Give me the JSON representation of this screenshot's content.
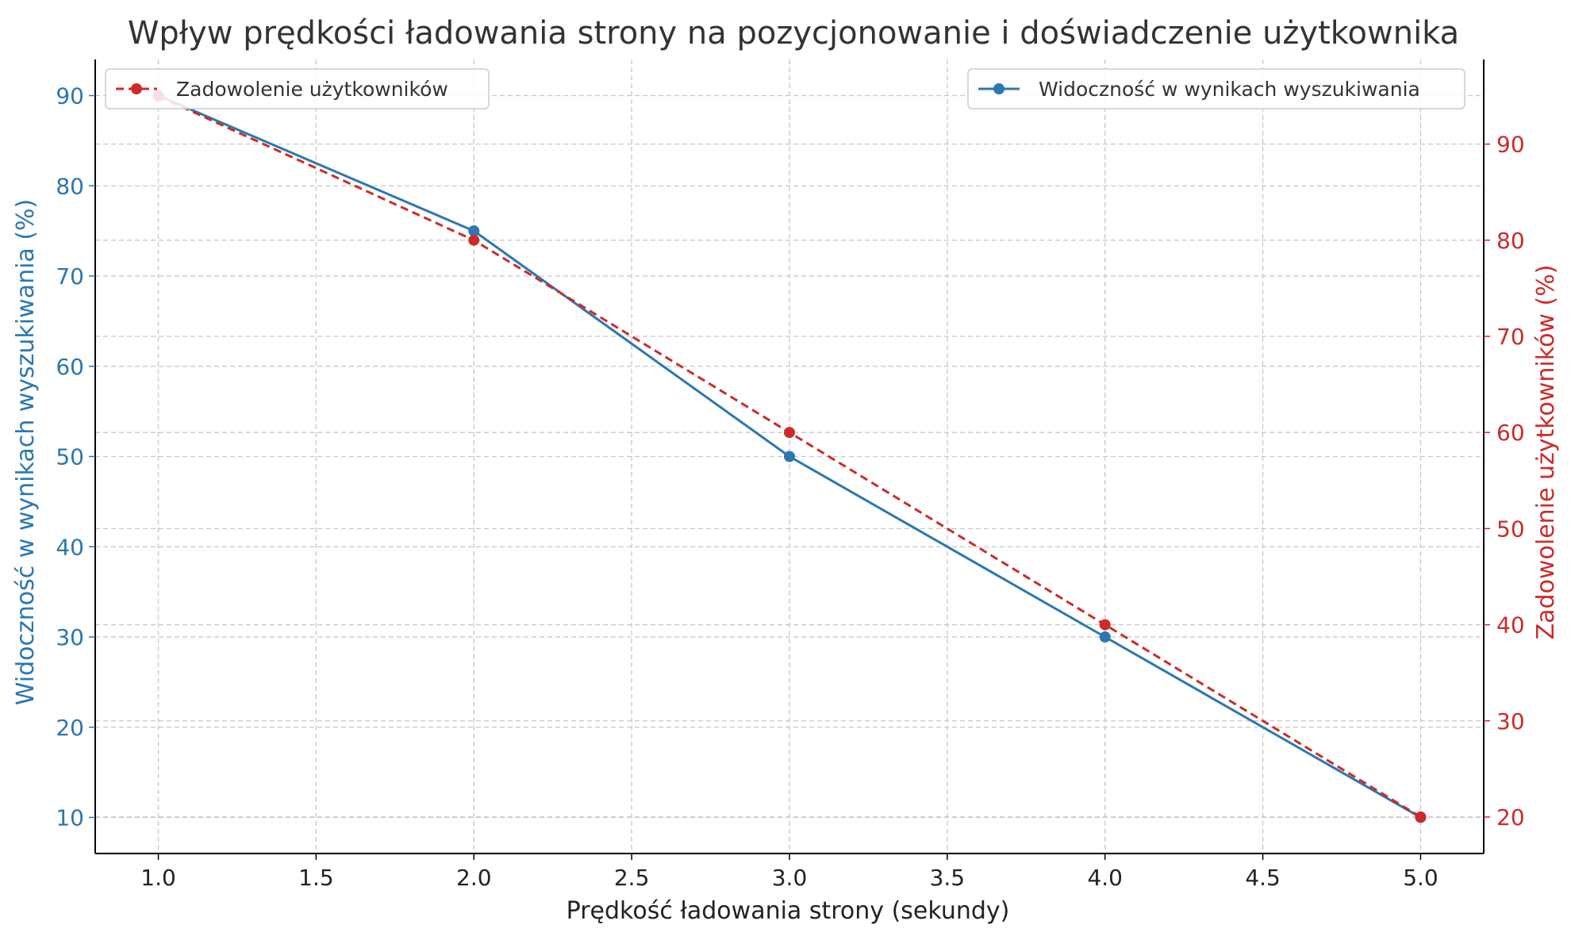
{
  "chart_data": {
    "type": "line",
    "title": "Wpływ prędkości ładowania strony na pozycjonowanie i doświadczenie użytkownika",
    "xlabel": "Prędkość ładowania strony (sekundy)",
    "ylabel_left": "Widoczność w wynikach wyszukiwania (%)",
    "ylabel_right": "Zadowolenie użytkowników (%)",
    "xlim": [
      0.8,
      5.2
    ],
    "ylim_left": [
      6,
      94
    ],
    "ylim_right": [
      16.2,
      98.8
    ],
    "xticks": [
      1.0,
      1.5,
      2.0,
      2.5,
      3.0,
      3.5,
      4.0,
      4.5,
      5.0
    ],
    "yticks_left": [
      10,
      20,
      30,
      40,
      50,
      60,
      70,
      80,
      90
    ],
    "yticks_right": [
      20,
      30,
      40,
      50,
      60,
      70,
      80,
      90
    ],
    "grid": true,
    "x": [
      1,
      2,
      3,
      4,
      5
    ],
    "series": [
      {
        "name": "Widoczność w wynikach wyszukiwania",
        "axis": "left",
        "values": [
          90,
          75,
          50,
          30,
          10
        ],
        "color": "#2c77b0",
        "line_style": "solid",
        "legend_position": "top-right"
      },
      {
        "name": "Zadowolenie użytkowników",
        "axis": "right",
        "values": [
          95,
          80,
          60,
          40,
          20
        ],
        "color": "#cc2b2b",
        "line_style": "dashed",
        "legend_position": "top-left"
      }
    ],
    "colors": {
      "left_axis": "#2c77b0",
      "right_axis": "#cc2b2b",
      "text": "#333333"
    }
  }
}
